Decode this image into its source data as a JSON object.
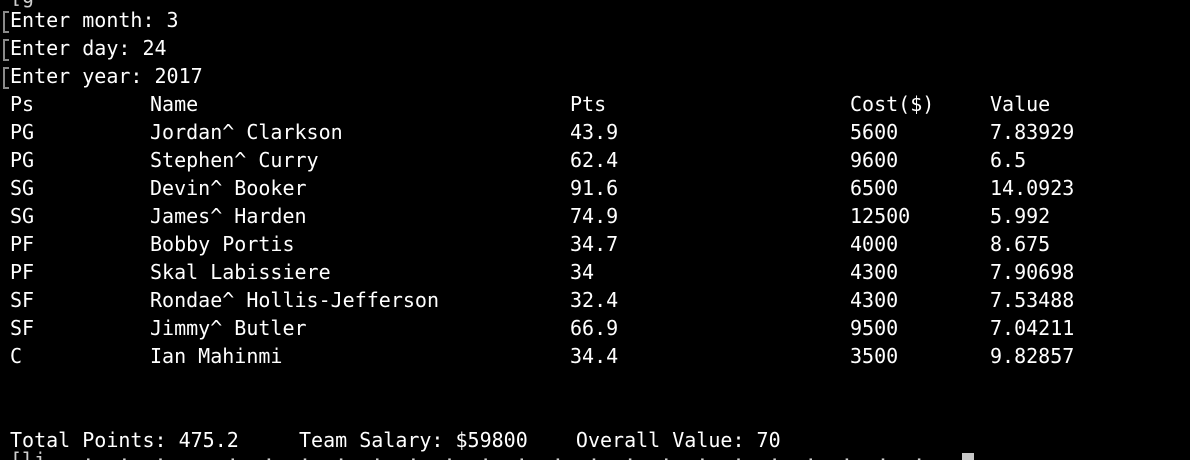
{
  "terminal": {
    "top_cut_text": "[g  ·   ·  ·  ·  ·  ·     ·  ·  ·  ·  ·  ·  ·  ·  ·  ·  ·  ·  ·  ·  ·  ·  ·  ·  ·  ·  ·  ·",
    "prompts": [
      {
        "text": "Enter month: 3"
      },
      {
        "text": "Enter day: 24"
      },
      {
        "text": "Enter year: 2017"
      }
    ],
    "table": {
      "headers": [
        "Ps",
        "Name",
        "Pts",
        "Cost($)",
        "Value"
      ],
      "rows": [
        [
          "PG",
          "Jordan^ Clarkson",
          "43.9",
          "5600",
          "7.83929"
        ],
        [
          "PG",
          "Stephen^ Curry",
          "62.4",
          "9600",
          "6.5"
        ],
        [
          "SG",
          "Devin^ Booker",
          "91.6",
          "6500",
          "14.0923"
        ],
        [
          "SG",
          "James^ Harden",
          "74.9",
          "12500",
          "5.992"
        ],
        [
          "PF",
          "Bobby Portis",
          "34.7",
          "4000",
          "8.675"
        ],
        [
          "PF",
          "Skal Labissiere",
          "34",
          "4300",
          "7.90698"
        ],
        [
          "SF",
          "Rondae^ Hollis-Jefferson",
          "32.4",
          "4300",
          "7.53488"
        ],
        [
          "SF",
          "Jimmy^ Butler",
          "66.9",
          "9500",
          "7.04211"
        ],
        [
          "C",
          "Ian Mahinmi",
          "34.4",
          "3500",
          "9.82857"
        ]
      ]
    },
    "summary": "Total Points: 475.2     Team Salary: $59800    Overall Value: 70",
    "bottom_cut_text": "[li   ·  ·  ·     ·  ·  ·  ·  ·  ·  ·  ·  ·  ·  ·  ·  ·  ·  ·  ·  ·  ·  ·  ·"
  }
}
